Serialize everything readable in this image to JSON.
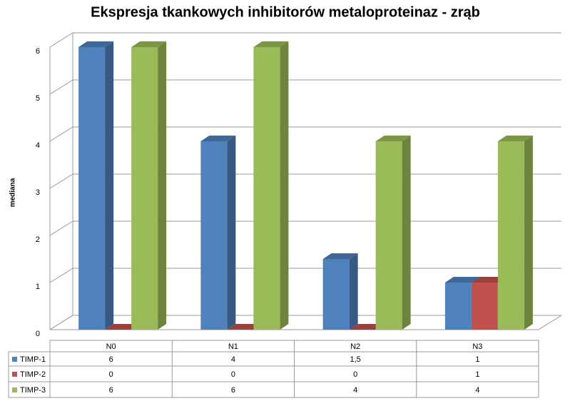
{
  "chart_data": {
    "type": "bar3d",
    "title": "Ekspresja tkankowych inhibitorów metaloproteinaz - zrąb",
    "y_label": "mediana",
    "categories": [
      "N0",
      "N1",
      "N2",
      "N3"
    ],
    "series": [
      {
        "name": "TIMP-1",
        "color": "#4f81bd",
        "values": [
          6,
          4,
          1.5,
          1
        ],
        "value_labels": [
          "6",
          "4",
          "1,5",
          "1"
        ]
      },
      {
        "name": "TIMP-2",
        "color": "#c0504d",
        "values": [
          0,
          0,
          0,
          1
        ]
      },
      {
        "name": "TIMP-3",
        "color": "#9bbb59",
        "values": [
          6,
          6,
          4,
          4
        ]
      }
    ],
    "ylim": [
      0,
      6
    ],
    "yticks": [
      0,
      1,
      2,
      3,
      4,
      5,
      6
    ],
    "grid": true
  }
}
